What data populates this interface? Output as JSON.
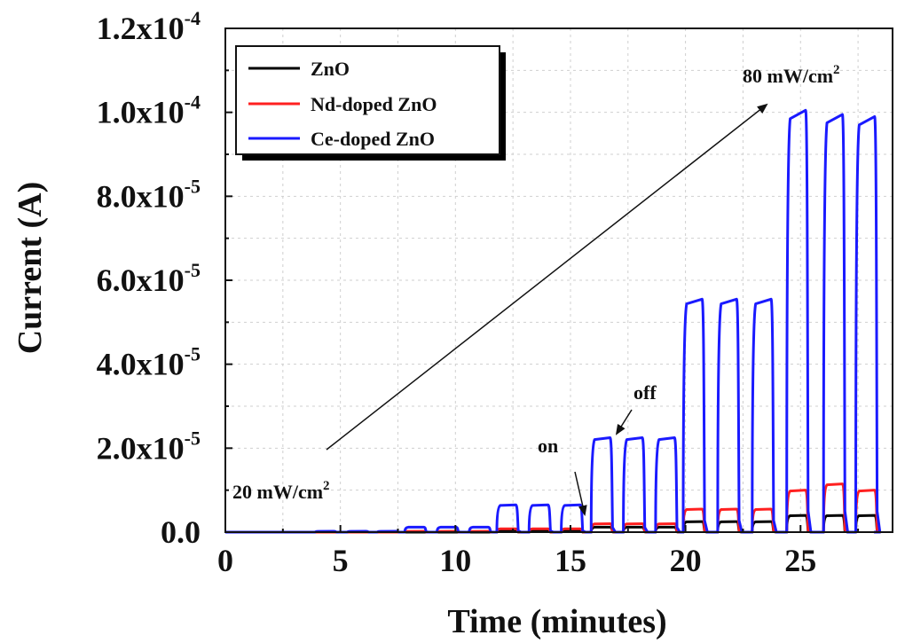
{
  "chart_data": {
    "type": "line",
    "xlabel": "Time (minutes)",
    "ylabel": "Current (A)",
    "xlim": [
      0,
      29
    ],
    "ylim": [
      0,
      0.00012
    ],
    "grid": true,
    "legend_position": "top-left",
    "x_ticks": [
      {
        "value": 0,
        "label": "0"
      },
      {
        "value": 5,
        "label": "5"
      },
      {
        "value": 10,
        "label": "10"
      },
      {
        "value": 15,
        "label": "15"
      },
      {
        "value": 20,
        "label": "20"
      },
      {
        "value": 25,
        "label": "25"
      }
    ],
    "y_ticks": [
      {
        "value": 0,
        "mantissa": "0.0",
        "exp": ""
      },
      {
        "value": 2e-05,
        "mantissa": "2.0x10",
        "exp": "-5"
      },
      {
        "value": 4e-05,
        "mantissa": "4.0x10",
        "exp": "-5"
      },
      {
        "value": 6e-05,
        "mantissa": "6.0x10",
        "exp": "-5"
      },
      {
        "value": 8e-05,
        "mantissa": "8.0x10",
        "exp": "-5"
      },
      {
        "value": 0.0001,
        "mantissa": "1.0x10",
        "exp": "-4"
      },
      {
        "value": 0.00012,
        "mantissa": "1.2x10",
        "exp": "-4"
      }
    ],
    "series": [
      {
        "name": "ZnO",
        "color": "#000000",
        "pulse_starts": [
          3.9,
          5.3,
          6.6,
          7.8,
          9.2,
          10.6,
          11.8,
          13.2,
          14.6,
          15.9,
          17.3,
          18.7,
          19.9,
          21.4,
          22.9,
          24.4,
          26.0,
          27.4
        ],
        "pulse_width": 0.9,
        "values": [
          0,
          0,
          0,
          0,
          0,
          0,
          3e-07,
          3e-07,
          3e-07,
          1.2e-06,
          1.2e-06,
          1.2e-06,
          2.5e-06,
          2.5e-06,
          2.5e-06,
          4e-06,
          4e-06,
          4e-06
        ]
      },
      {
        "name": "Nd-doped ZnO",
        "color": "#ff2020",
        "pulse_starts": [
          3.9,
          5.3,
          6.6,
          7.8,
          9.2,
          10.6,
          11.8,
          13.2,
          14.6,
          15.9,
          17.3,
          18.7,
          19.9,
          21.4,
          22.9,
          24.4,
          26.0,
          27.4
        ],
        "pulse_width": 0.9,
        "values": [
          0,
          0,
          0,
          2e-07,
          2e-07,
          2e-07,
          8e-07,
          8e-07,
          8e-07,
          2e-06,
          2e-06,
          2e-06,
          5.5e-06,
          5.5e-06,
          5.5e-06,
          1e-05,
          1.15e-05,
          1e-05
        ]
      },
      {
        "name": "Ce-doped ZnO",
        "color": "#1a1aff",
        "pulse_starts": [
          3.9,
          5.3,
          6.6,
          7.8,
          9.2,
          10.6,
          11.8,
          13.2,
          14.6,
          15.9,
          17.3,
          18.7,
          19.9,
          21.4,
          22.9,
          24.4,
          26.0,
          27.4
        ],
        "pulse_width": 0.9,
        "values": [
          2e-07,
          2e-07,
          2e-07,
          1.2e-06,
          1.2e-06,
          1.2e-06,
          6.5e-06,
          6.5e-06,
          6.5e-06,
          2.25e-05,
          2.25e-05,
          2.25e-05,
          5.55e-05,
          5.55e-05,
          5.55e-05,
          0.0001005,
          9.95e-05,
          9.9e-05
        ]
      }
    ],
    "annotations": {
      "low_intensity": {
        "text": "20 mW/cm",
        "sup": "2"
      },
      "high_intensity": {
        "text": "80 mW/cm",
        "sup": "2"
      },
      "on_label": "on",
      "off_label": "off"
    }
  }
}
